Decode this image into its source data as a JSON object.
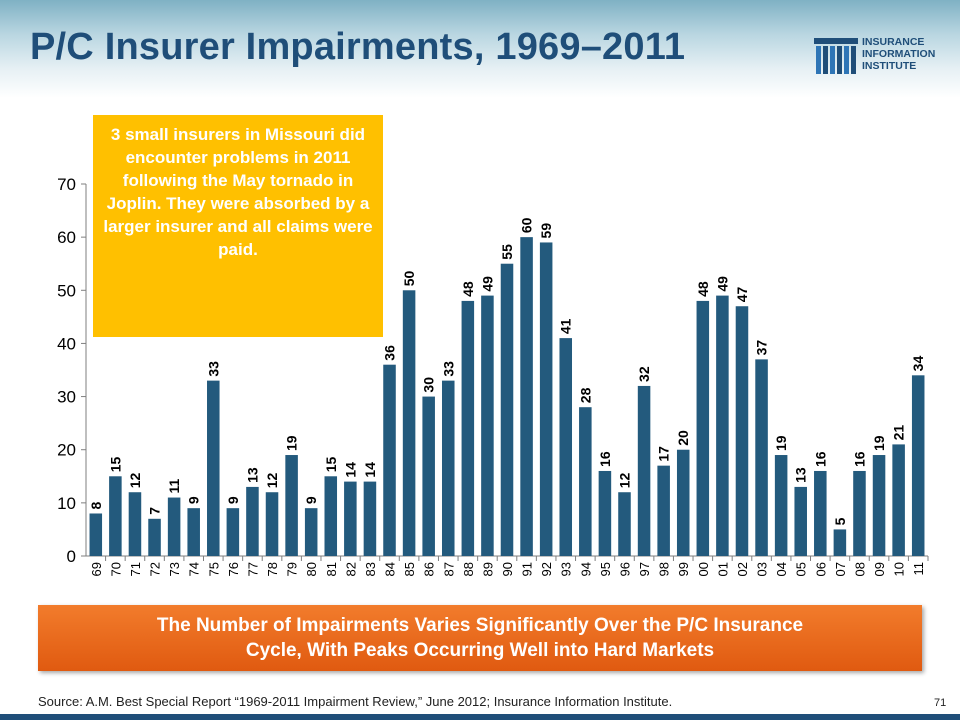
{
  "header": {
    "title": "P/C Insurer Impairments, 1969–2011",
    "logo_lines": [
      "INSURANCE",
      "INFORMATION",
      "INSTITUTE"
    ]
  },
  "callout": {
    "text": "3 small insurers in Missouri did encounter problems in 2011 following the May tornado in Joplin. They were absorbed by a larger insurer and all claims were paid."
  },
  "banner": {
    "line1": "The Number of Impairments Varies Significantly Over the P/C Insurance",
    "line2": "Cycle, With Peaks Occurring Well into Hard Markets"
  },
  "footer": {
    "source": "Source: A.M. Best Special Report “1969-2011 Impairment Review,” June  2012; Insurance Information Institute.",
    "page_number": "71"
  },
  "colors": {
    "bar": "#235a7d",
    "callout": "#ffc000",
    "banner": "#e8661a",
    "title": "#1f4e79"
  },
  "chart_data": {
    "type": "bar",
    "categories": [
      "69",
      "70",
      "71",
      "72",
      "73",
      "74",
      "75",
      "76",
      "77",
      "78",
      "79",
      "80",
      "81",
      "82",
      "83",
      "84",
      "85",
      "86",
      "87",
      "88",
      "89",
      "90",
      "91",
      "92",
      "93",
      "94",
      "95",
      "96",
      "97",
      "98",
      "99",
      "00",
      "01",
      "02",
      "03",
      "04",
      "05",
      "06",
      "07",
      "08",
      "09",
      "10",
      "11"
    ],
    "values": [
      8,
      15,
      12,
      7,
      11,
      9,
      33,
      9,
      13,
      12,
      19,
      9,
      15,
      14,
      14,
      36,
      50,
      30,
      33,
      48,
      49,
      55,
      60,
      59,
      41,
      28,
      16,
      12,
      32,
      17,
      20,
      48,
      49,
      47,
      37,
      19,
      13,
      16,
      5,
      16,
      19,
      21,
      34
    ],
    "ylim": [
      0,
      70
    ],
    "yticks": [
      0,
      10,
      20,
      30,
      40,
      50,
      60,
      70
    ],
    "grid": false,
    "legend": "none"
  }
}
